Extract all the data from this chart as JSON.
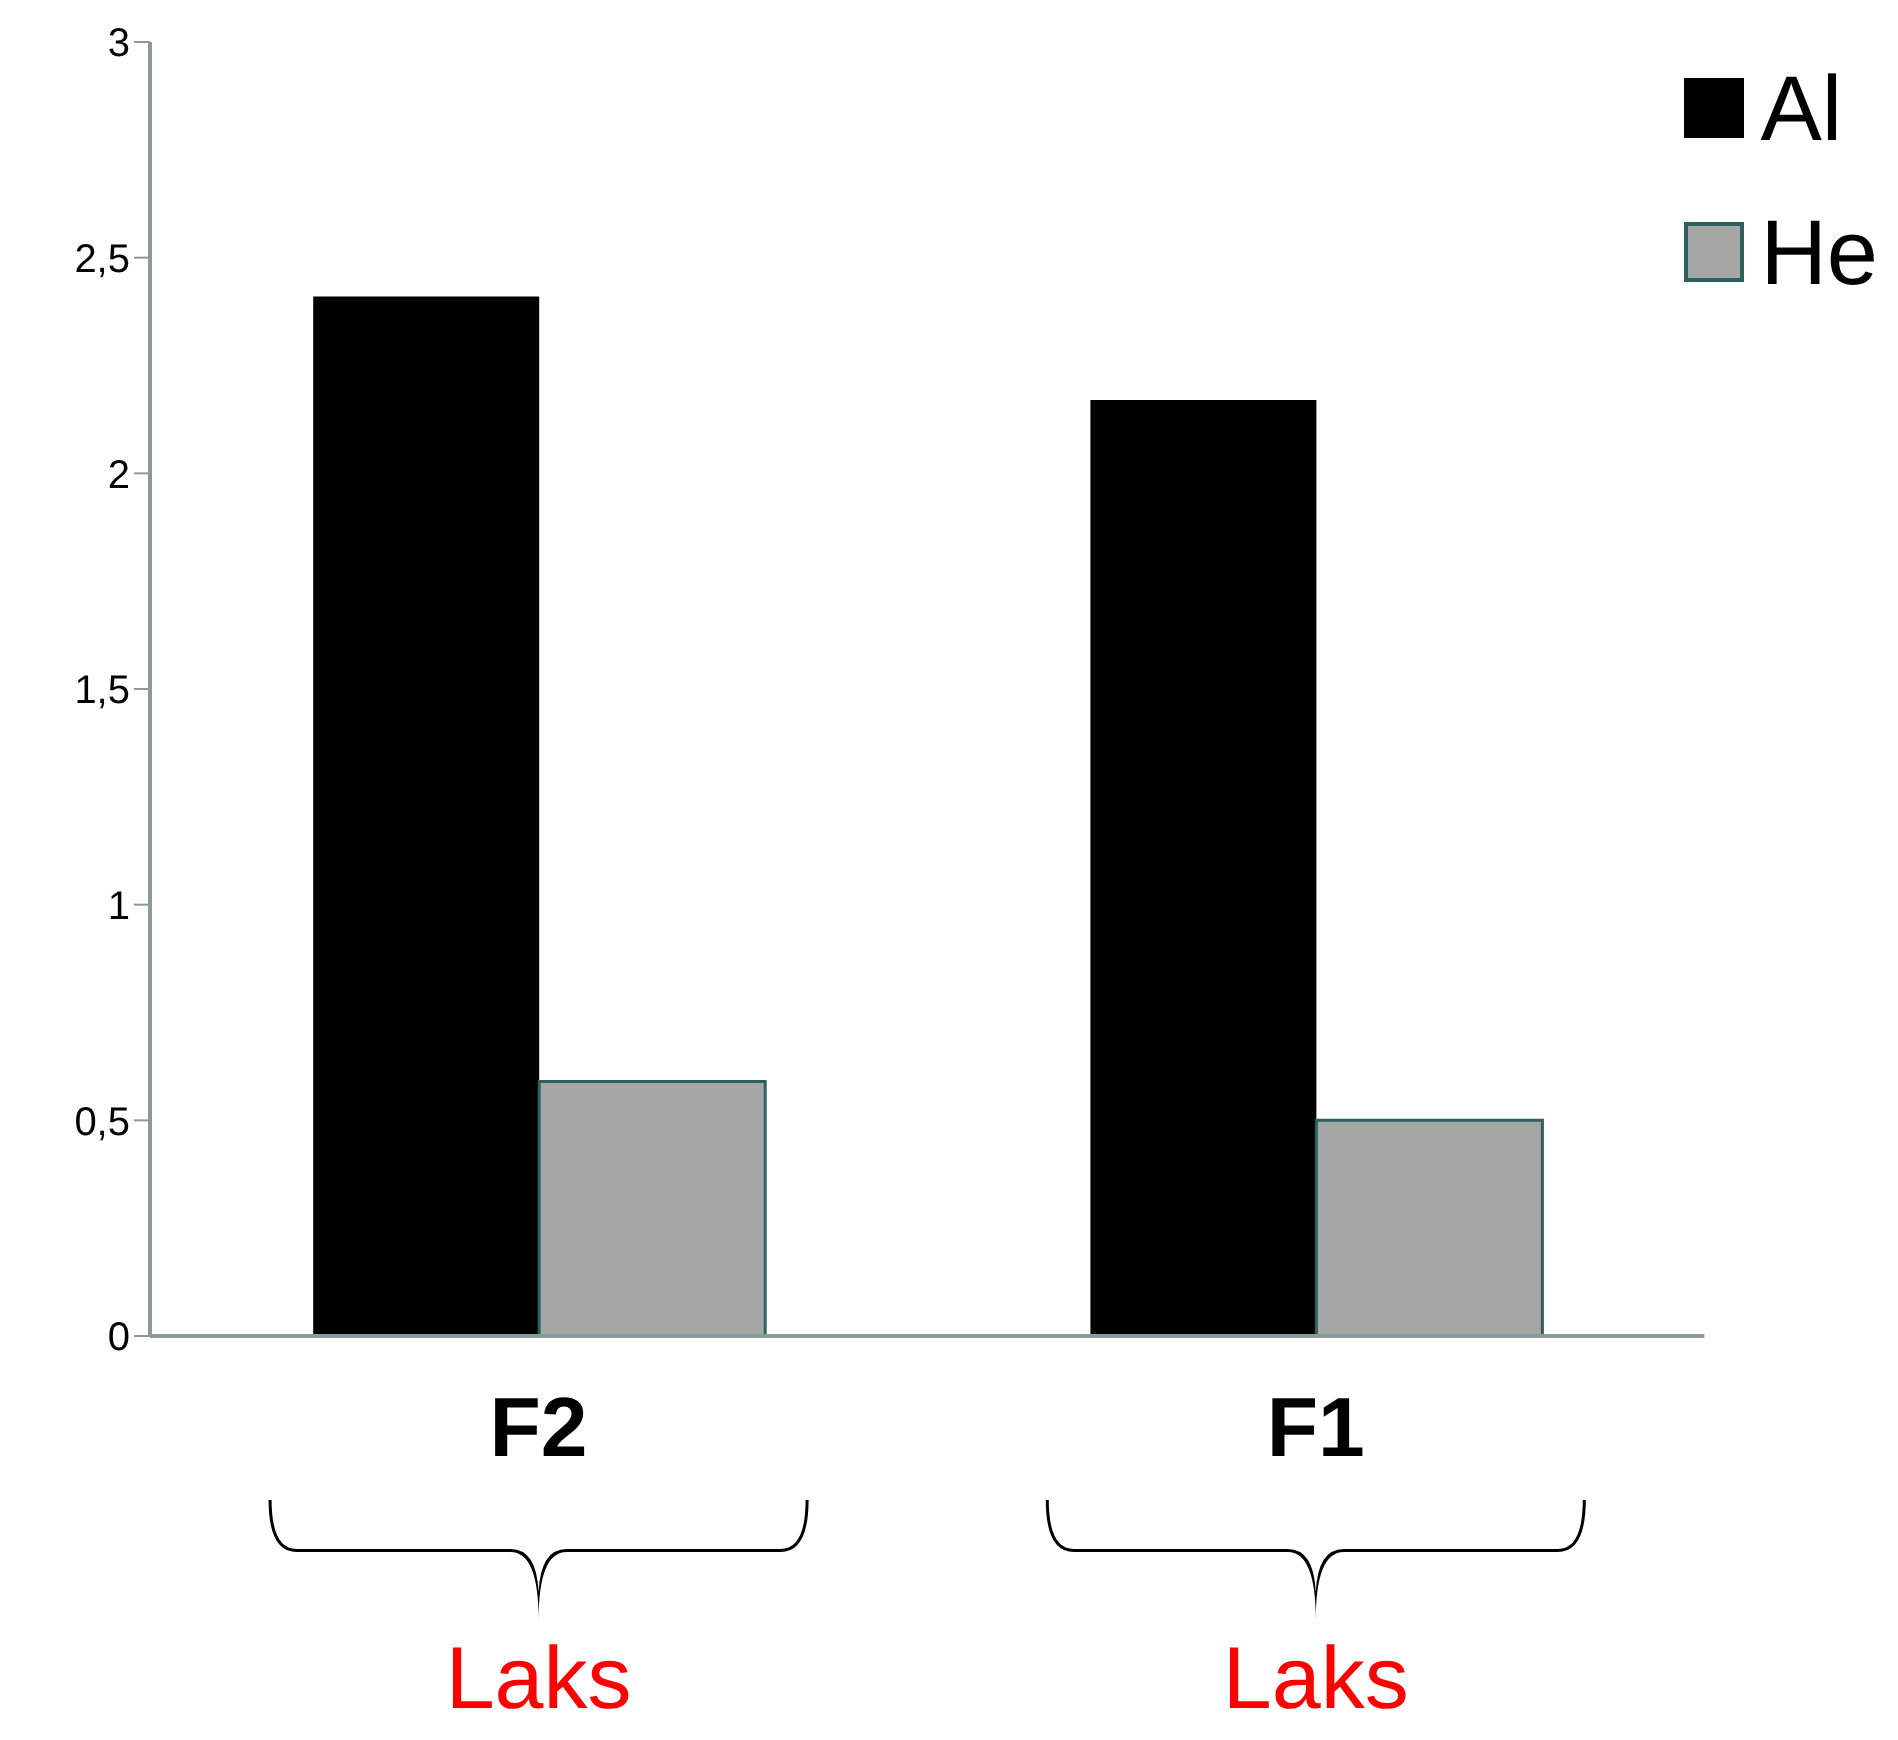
{
  "chart_data": {
    "type": "bar",
    "categories": [
      "F2",
      "F1"
    ],
    "series": [
      {
        "name": "Al",
        "color": "#000000",
        "values": [
          2.41,
          2.17
        ]
      },
      {
        "name": "He",
        "color": "#a6a6a6",
        "values": [
          0.59,
          0.5
        ]
      }
    ],
    "ylim": [
      0,
      3
    ],
    "yticks": [
      0,
      {
        "value": 0.5,
        "label": "0,5"
      },
      1,
      {
        "value": 1.5,
        "label": "1,5"
      },
      2,
      {
        "value": 2.5,
        "label": "2,5"
      },
      3
    ],
    "grid": false,
    "legend": "top right",
    "annotations": [
      "Laks",
      "Laks"
    ]
  }
}
